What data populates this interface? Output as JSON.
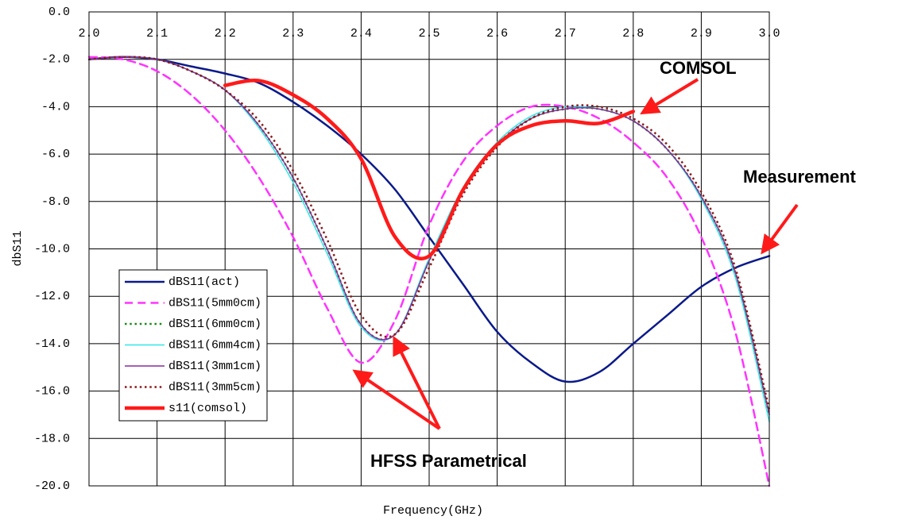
{
  "chart_data": {
    "type": "line",
    "xlabel": "Frequency(GHz)",
    "ylabel": "dbS11",
    "annotations": [
      "COMSOL",
      "Measurement",
      "HFSS Parametrical"
    ],
    "x": [
      2.0,
      2.05,
      2.1,
      2.15,
      2.2,
      2.25,
      2.3,
      2.35,
      2.4,
      2.45,
      2.5,
      2.55,
      2.6,
      2.65,
      2.7,
      2.75,
      2.8,
      2.85,
      2.9,
      2.95,
      3.0
    ],
    "series": [
      {
        "name": "dBS11(act)",
        "color": "#0a1a8a",
        "dash": "solid",
        "width": 2.5,
        "values": [
          -2.0,
          -1.9,
          -2.0,
          -2.3,
          -2.6,
          -3.0,
          -3.8,
          -4.8,
          -6.0,
          -7.5,
          -9.5,
          -11.5,
          -13.5,
          -14.8,
          -15.6,
          -15.2,
          -14.0,
          -12.8,
          -11.6,
          -10.8,
          -10.3
        ]
      },
      {
        "name": "dBS11(5mm0cm)",
        "color": "#ff33ff",
        "dash": "dash",
        "width": 2.5,
        "values": [
          -1.9,
          -2.0,
          -2.5,
          -3.5,
          -5.0,
          -7.0,
          -9.5,
          -12.5,
          -14.8,
          -13.0,
          -9.0,
          -6.3,
          -4.8,
          -4.0,
          -4.0,
          -4.5,
          -5.5,
          -7.0,
          -9.5,
          -13.5,
          -20.0
        ]
      },
      {
        "name": "dBS11(6mm0cm)",
        "color": "#1a8a1a",
        "dash": "dot",
        "width": 2.5,
        "values": [
          -2.0,
          -1.9,
          -2.0,
          -2.5,
          -3.3,
          -4.8,
          -7.0,
          -10.0,
          -13.2,
          -13.6,
          -10.5,
          -7.5,
          -5.6,
          -4.5,
          -4.1,
          -4.1,
          -4.6,
          -5.8,
          -7.8,
          -11.0,
          -17.0
        ]
      },
      {
        "name": "dBS11(6mm4cm)",
        "color": "#33e6e6",
        "dash": "solid",
        "width": 1.5,
        "values": [
          -2.0,
          -1.9,
          -2.0,
          -2.5,
          -3.3,
          -4.9,
          -7.2,
          -10.2,
          -13.3,
          -13.6,
          -10.4,
          -7.4,
          -5.5,
          -4.4,
          -4.0,
          -4.1,
          -4.6,
          -5.8,
          -7.9,
          -11.2,
          -17.3
        ]
      },
      {
        "name": "dBS11(3mm1cm)",
        "color": "#8a2a9a",
        "dash": "solid",
        "width": 1.5,
        "values": [
          -2.0,
          -1.9,
          -2.0,
          -2.5,
          -3.3,
          -4.8,
          -7.0,
          -10.0,
          -13.2,
          -13.6,
          -10.5,
          -7.5,
          -5.6,
          -4.5,
          -4.1,
          -4.1,
          -4.6,
          -5.8,
          -7.8,
          -11.0,
          -17.0
        ]
      },
      {
        "name": "dBS11(3mm5cm)",
        "color": "#8b1a1a",
        "dash": "dot",
        "width": 2.5,
        "values": [
          -2.0,
          -1.9,
          -2.0,
          -2.5,
          -3.3,
          -4.6,
          -6.7,
          -9.6,
          -12.8,
          -13.6,
          -10.8,
          -7.7,
          -5.7,
          -4.5,
          -4.0,
          -4.0,
          -4.5,
          -5.6,
          -7.6,
          -10.8,
          -16.8
        ]
      },
      {
        "name": "s11(comsol)",
        "color": "#ff1a1a",
        "dash": "solid",
        "width": 4.5,
        "values": [
          null,
          null,
          null,
          null,
          -3.1,
          -2.9,
          -3.5,
          -4.5,
          -6.2,
          -9.5,
          -10.3,
          -7.5,
          -5.6,
          -4.8,
          -4.6,
          -4.7,
          -4.2,
          null,
          null,
          null,
          null
        ]
      }
    ],
    "xlim": [
      2.0,
      3.0
    ],
    "xticks": [
      {
        "value": 2.0,
        "label": "2.0"
      },
      2.1,
      2.2,
      2.3,
      2.4,
      2.5,
      2.6,
      2.7,
      2.8,
      2.9,
      {
        "value": 3.0,
        "label": "3.0"
      }
    ],
    "ylim": [
      -20,
      0
    ],
    "yticks": [
      {
        "value": 0,
        "label": "0.0"
      },
      {
        "value": -2,
        "label": "-2.0"
      },
      {
        "value": -4,
        "label": "-4.0"
      },
      {
        "value": -6,
        "label": "-6.0"
      },
      {
        "value": -8,
        "label": "-8.0"
      },
      {
        "value": -10,
        "label": "-10.0"
      },
      {
        "value": -12,
        "label": "-12.0"
      },
      {
        "value": -14,
        "label": "-14.0"
      },
      {
        "value": -16,
        "label": "-16.0"
      },
      {
        "value": -18,
        "label": "-18.0"
      },
      {
        "value": -20,
        "label": "-20.0"
      }
    ],
    "grid": true
  }
}
